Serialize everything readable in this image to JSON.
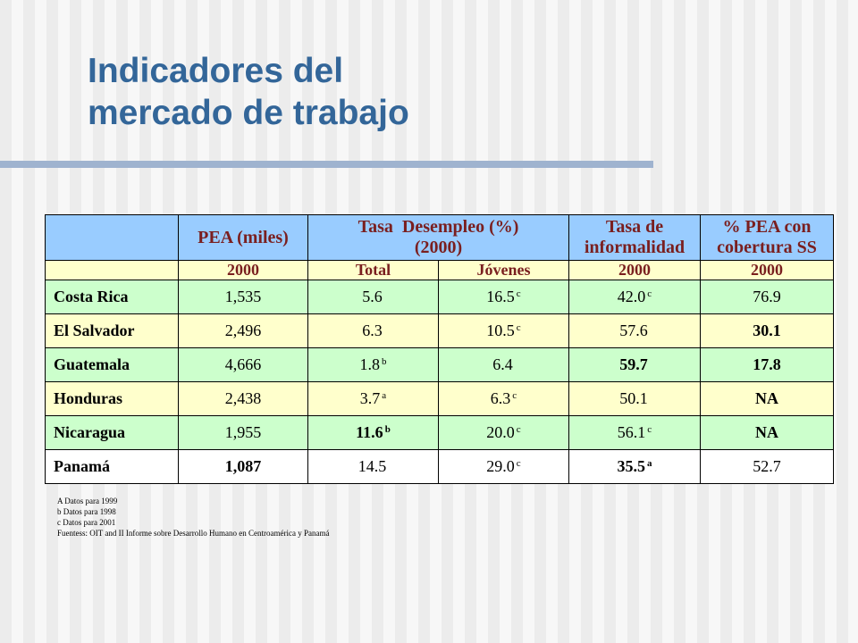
{
  "slide": {
    "title_line1": "Indicadores del",
    "title_line2": "mercado de trabajo"
  },
  "table": {
    "header": {
      "col1": "",
      "pea": "PEA (miles)",
      "desempleo_line1": "Tasa  Desempleo (%)",
      "desempleo_line2": "(2000)",
      "informalidad_line1": "Tasa de",
      "informalidad_line2": "informalidad",
      "cobertura_line1": "% PEA con",
      "cobertura_line2": "cobertura SS"
    },
    "subheader": [
      "",
      "2000",
      "Total",
      "Jóvenes",
      "2000",
      "2000"
    ],
    "rows": [
      {
        "country": "Costa Rica",
        "pea": "1,535",
        "total": "5.6",
        "total_note": "",
        "jovenes": "16.5",
        "jovenes_note": "c",
        "informalidad": "42.0",
        "informalidad_note": "c",
        "cobertura": "76.9"
      },
      {
        "country": "El Salvador",
        "pea": "2,496",
        "total": "6.3",
        "total_note": "",
        "jovenes": "10.5",
        "jovenes_note": "c",
        "informalidad": "57.6",
        "informalidad_note": "",
        "cobertura": "30.1"
      },
      {
        "country": "Guatemala",
        "pea": "4,666",
        "total": "1.8",
        "total_note": "b",
        "jovenes": "6.4",
        "jovenes_note": "",
        "informalidad": "59.7",
        "informalidad_note": "",
        "cobertura": "17.8"
      },
      {
        "country": "Honduras",
        "pea": "2,438",
        "total": "3.7",
        "total_note": "a",
        "jovenes": "6.3",
        "jovenes_note": "c",
        "informalidad": "50.1",
        "informalidad_note": "",
        "cobertura": "NA"
      },
      {
        "country": "Nicaragua",
        "pea": "1,955",
        "total": "11.6",
        "total_note": "b",
        "jovenes": "20.0",
        "jovenes_note": "c",
        "informalidad": "56.1",
        "informalidad_note": "c",
        "cobertura": "NA"
      },
      {
        "country": "Panamá",
        "pea": "1,087",
        "total": "14.5",
        "total_note": "",
        "jovenes": "29.0",
        "jovenes_note": "c",
        "informalidad": "35.5",
        "informalidad_note": "a",
        "cobertura": "52.7"
      }
    ]
  },
  "notes": [
    "A Datos para 1999",
    "b  Datos para 1998",
    "c  Datos para 2001",
    "Fuentess: OIT and II Informe sobre Desarrollo Humano en Centroamérica y Panamá"
  ],
  "colors": {
    "title": "#336699",
    "header_bg": "#99ccff",
    "header_text": "#7a1f1f",
    "row_green": "#ccffcc",
    "row_yellow": "#ffffcc",
    "rule": "#9fb3cf"
  }
}
